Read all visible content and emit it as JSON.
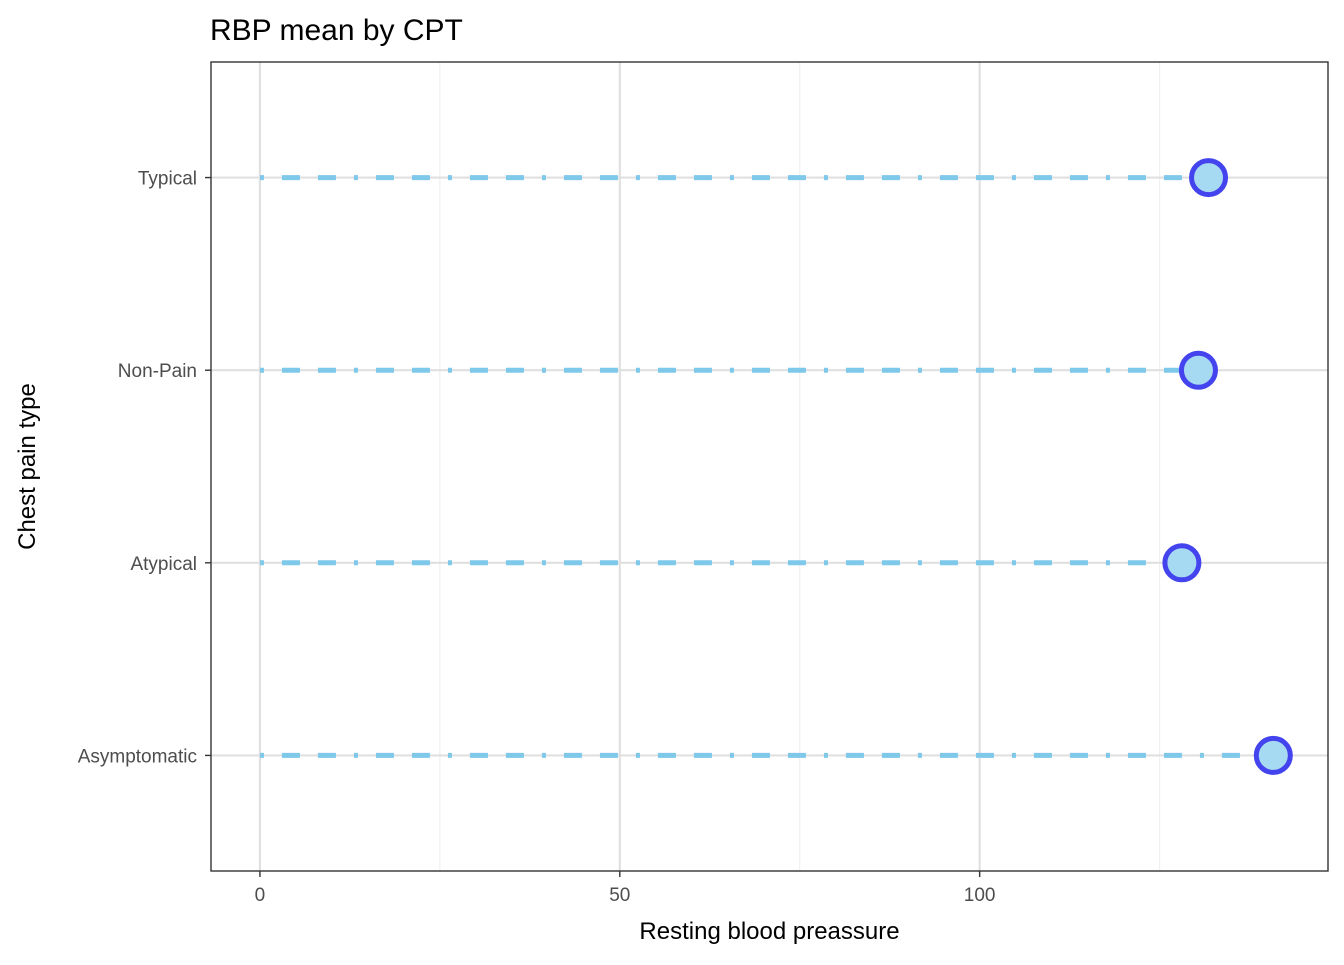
{
  "chart_data": {
    "type": "lollipop",
    "title": "RBP mean by CPT",
    "xlabel": "Resting blood preassure",
    "ylabel": "Chest pain type",
    "xlim": [
      -6.8,
      148.4
    ],
    "x_ticks": [
      0,
      50,
      100
    ],
    "x_tick_labels": [
      "0",
      "50",
      "100"
    ],
    "categories": [
      "Asymptomatic",
      "Atypical",
      "Non-Pain",
      "Typical"
    ],
    "values": [
      140.8,
      128.1,
      130.4,
      131.8
    ],
    "grid": true,
    "legend": "none",
    "colors": {
      "stem": "#7ec8ea",
      "point_fill": "#a6d9f2",
      "point_stroke": "#4444ee",
      "grid_major": "#e0e0e0",
      "grid_minor": "#efefef",
      "panel_border": "#333333"
    }
  }
}
